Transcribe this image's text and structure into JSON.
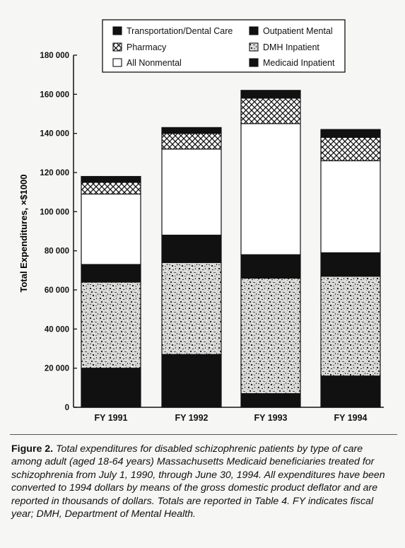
{
  "chart_data": {
    "type": "bar",
    "stacked": true,
    "categories": [
      "FY 1991",
      "FY 1992",
      "FY 1993",
      "FY 1994"
    ],
    "ylabel": "Total Expenditures, ×$1000",
    "ylim": [
      0,
      180000
    ],
    "yticks": [
      0,
      20000,
      40000,
      60000,
      80000,
      100000,
      120000,
      140000,
      160000,
      180000
    ],
    "ytick_labels": [
      "0",
      "20 000",
      "40 000",
      "60 000",
      "80 000",
      "100 000",
      "120 000",
      "140 000",
      "160 000",
      "180 000"
    ],
    "grid": false,
    "legend_position": "top",
    "series": [
      {
        "name": "Medicaid Inpatient",
        "pattern": "solid-black",
        "values": [
          20000,
          27000,
          7000,
          16000
        ]
      },
      {
        "name": "DMH Inpatient",
        "pattern": "speckled",
        "values": [
          44000,
          47000,
          59000,
          51000
        ]
      },
      {
        "name": "Outpatient Mental",
        "pattern": "solid-black",
        "values": [
          9000,
          14000,
          12000,
          12000
        ]
      },
      {
        "name": "All Nonmental",
        "pattern": "white",
        "values": [
          36000,
          44000,
          67000,
          47000
        ]
      },
      {
        "name": "Pharmacy",
        "pattern": "crosshatch",
        "values": [
          6000,
          8000,
          13000,
          12000
        ]
      },
      {
        "name": "Transportation/Dental Care",
        "pattern": "solid-black",
        "values": [
          3000,
          3000,
          4000,
          4000
        ]
      }
    ],
    "legend_order": [
      "Transportation/Dental Care",
      "Outpatient Mental",
      "Pharmacy",
      "DMH Inpatient",
      "All Nonmental",
      "Medicaid Inpatient"
    ]
  },
  "caption": {
    "label": "Figure 2.",
    "text": "Total expenditures for disabled schizophrenic patients by type of care among adult (aged 18-64 years) Massachusetts Medicaid beneficiaries treated for schizophrenia from July 1, 1990, through June 30, 1994. All expenditures have been converted to 1994 dollars by means of the gross domestic product deflator and are reported in thousands of dollars. Totals are reported in Table 4. FY indicates fiscal year; DMH, Department of Mental Health."
  },
  "colors": {
    "ink": "#111111",
    "paper": "#f6f6f4",
    "speckle_dark": "#3a3a3a"
  }
}
